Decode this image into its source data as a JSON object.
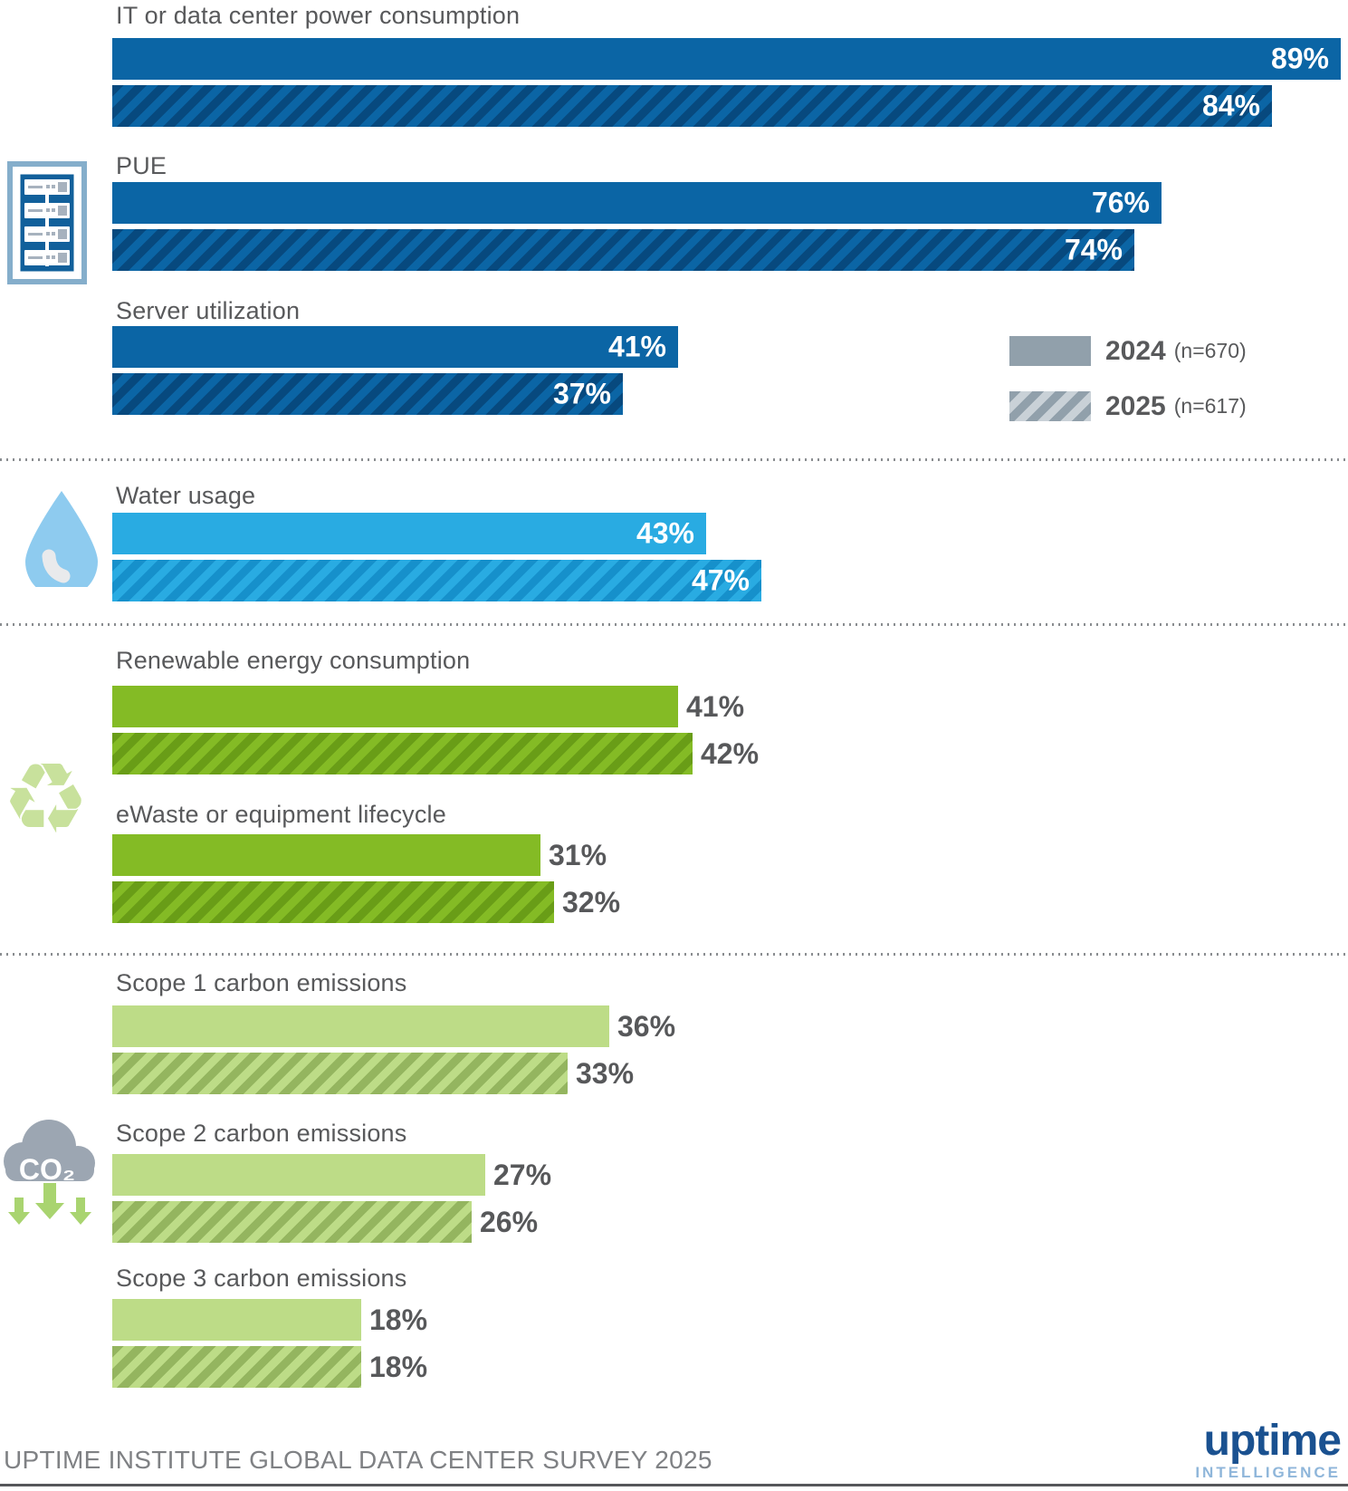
{
  "chart_data": {
    "type": "bar",
    "orientation": "horizontal",
    "title": "",
    "unit": "%",
    "xlim": [
      0,
      100
    ],
    "grid": false,
    "legend_position": "right-of-third-group",
    "series": [
      {
        "name": "2024",
        "n_label": "(n=670)",
        "style": "solid"
      },
      {
        "name": "2025",
        "n_label": "(n=617)",
        "style": "hatched"
      }
    ],
    "groups": [
      {
        "label": "IT or data center power consumption",
        "section": "energy",
        "values": {
          "y2024": 89,
          "y2025": 84
        },
        "display": {
          "y2024": "89%",
          "y2025": "84%"
        }
      },
      {
        "label": "PUE",
        "section": "energy",
        "values": {
          "y2024": 76,
          "y2025": 74
        },
        "display": {
          "y2024": "76%",
          "y2025": "74%"
        }
      },
      {
        "label": "Server utilization",
        "section": "energy",
        "values": {
          "y2024": 41,
          "y2025": 37
        },
        "display": {
          "y2024": "41%",
          "y2025": "37%"
        }
      },
      {
        "label": "Water usage",
        "section": "water",
        "values": {
          "y2024": 43,
          "y2025": 47
        },
        "display": {
          "y2024": "43%",
          "y2025": "47%"
        }
      },
      {
        "label": "Renewable energy consumption",
        "section": "recycling",
        "values": {
          "y2024": 41,
          "y2025": 42
        },
        "display": {
          "y2024": "41%",
          "y2025": "42%"
        }
      },
      {
        "label": "eWaste or equipment lifecycle",
        "section": "recycling",
        "values": {
          "y2024": 31,
          "y2025": 32
        },
        "display": {
          "y2024": "31%",
          "y2025": "32%"
        }
      },
      {
        "label": "Scope 1 carbon emissions",
        "section": "carbon",
        "values": {
          "y2024": 36,
          "y2025": 33
        },
        "display": {
          "y2024": "36%",
          "y2025": "33%"
        }
      },
      {
        "label": "Scope 2 carbon emissions",
        "section": "carbon",
        "values": {
          "y2024": 27,
          "y2025": 26
        },
        "display": {
          "y2024": "27%",
          "y2025": "26%"
        }
      },
      {
        "label": "Scope 3 carbon emissions",
        "section": "carbon",
        "values": {
          "y2024": 18,
          "y2025": 18
        },
        "display": {
          "y2024": "18%",
          "y2025": "18%"
        }
      }
    ],
    "colors": {
      "blue_solid": "#0B65A5",
      "blue_stripe": "#07497E",
      "light_blue_solid": "#29ABE2",
      "light_blue_stripe": "#1690CB",
      "green_solid": "#84BB25",
      "green_stripe": "#699D17",
      "light_green_solid": "#BDDC87",
      "light_green_stripe": "#94B55F",
      "legend_gray": "#91A0AB",
      "legend_gray_light": "#C9D1D7",
      "label_text": "#58595B",
      "value_in_bar": "#FFFFFF",
      "value_outside": "#57585A"
    }
  },
  "legend": {
    "row2024": {
      "year": "2024",
      "n": "(n=670)"
    },
    "row2025": {
      "year": "2025",
      "n": "(n=617)"
    }
  },
  "icons": {
    "server_rack": "server-rack-icon",
    "water_drop": "water-drop-icon",
    "recycle": "recycle-icon",
    "recycle_glyph": "♻",
    "co2_cloud": "co2-cloud-icon",
    "co2_text": "CO₂"
  },
  "footer": {
    "source": "UPTIME INSTITUTE GLOBAL DATA CENTER SURVEY 2025",
    "logo_main": "uptime",
    "logo_sub": "INTELLIGENCE"
  }
}
